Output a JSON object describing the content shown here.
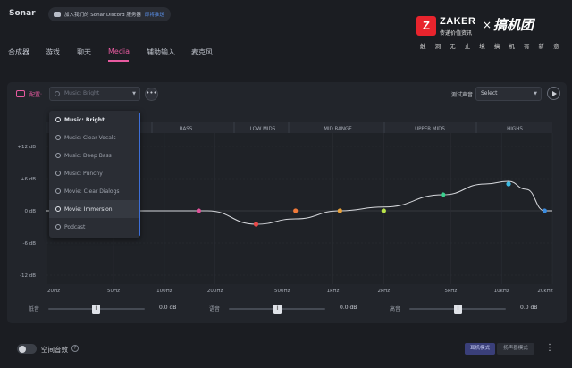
{
  "app": {
    "title": "Sonar"
  },
  "discord": {
    "text": "加入我们的 Sonar Discord 服务器",
    "link": "即将推送"
  },
  "brand": {
    "zaker": "ZAKER",
    "zaker_sub": "传递价值资讯",
    "times": "×",
    "partner": "搞机团",
    "tagline": "触 洞 无 止 境   搞 机 有 新 意",
    "z_glyph": "Z"
  },
  "tabs": [
    {
      "label": "合成器"
    },
    {
      "label": "游戏"
    },
    {
      "label": "聊天"
    },
    {
      "label": "Media"
    },
    {
      "label": "辅助输入"
    },
    {
      "label": "麦克风"
    }
  ],
  "preset": {
    "label": "配置:",
    "value": "Music: Bright",
    "more": "•••"
  },
  "test": {
    "label": "测试声音",
    "value": "Select"
  },
  "dropdown": {
    "items": [
      {
        "label": "Music: Bright"
      },
      {
        "label": "Music: Clear Vocals"
      },
      {
        "label": "Music: Deep Bass"
      },
      {
        "label": "Music: Punchy"
      },
      {
        "label": "Movie: Clear Dialogs"
      },
      {
        "label": "Movie: Immersion"
      },
      {
        "label": "Podcast"
      }
    ]
  },
  "eq": {
    "bands": [
      "BASS",
      "LOW MIDS",
      "MID RANGE",
      "UPPER MIDS",
      "HIGHS"
    ],
    "y_ticks": [
      "+12 dB",
      "+6 dB",
      "0 dB",
      "-6 dB",
      "-12 dB"
    ],
    "x_ticks": [
      "20Hz",
      "50Hz",
      "100Hz",
      "200Hz",
      "500Hz",
      "1kHz",
      "2kHz",
      "5kHz",
      "10kHz",
      "20kHz"
    ],
    "points": [
      {
        "freq": 160,
        "gain": 0,
        "color": "#e0529a"
      },
      {
        "freq": 350,
        "gain": -2.5,
        "color": "#e84a4a"
      },
      {
        "freq": 600,
        "gain": 0,
        "color": "#f07a3a"
      },
      {
        "freq": 1100,
        "gain": 0,
        "color": "#e8a13a"
      },
      {
        "freq": 2000,
        "gain": 0,
        "color": "#b9e34a"
      },
      {
        "freq": 4500,
        "gain": 3,
        "color": "#3ad18e"
      },
      {
        "freq": 11000,
        "gain": 5,
        "color": "#3ab8e0"
      },
      {
        "freq": 18000,
        "gain": 0,
        "color": "#3a8ce0"
      }
    ]
  },
  "sliders": [
    {
      "label": "低音",
      "value": "0.0 dB"
    },
    {
      "label": "语音",
      "value": "0.0 dB"
    },
    {
      "label": "高音",
      "value": "0.0 dB"
    }
  ],
  "thumb_glyph": "‖",
  "bottom": {
    "spatial": "空间音效",
    "help": "?",
    "mode_a": "耳机模式",
    "mode_b": "扬声器模式",
    "kebab": "⋮"
  },
  "colors": {
    "accent": "#e85aa0",
    "selection": "#3d6fd8"
  }
}
